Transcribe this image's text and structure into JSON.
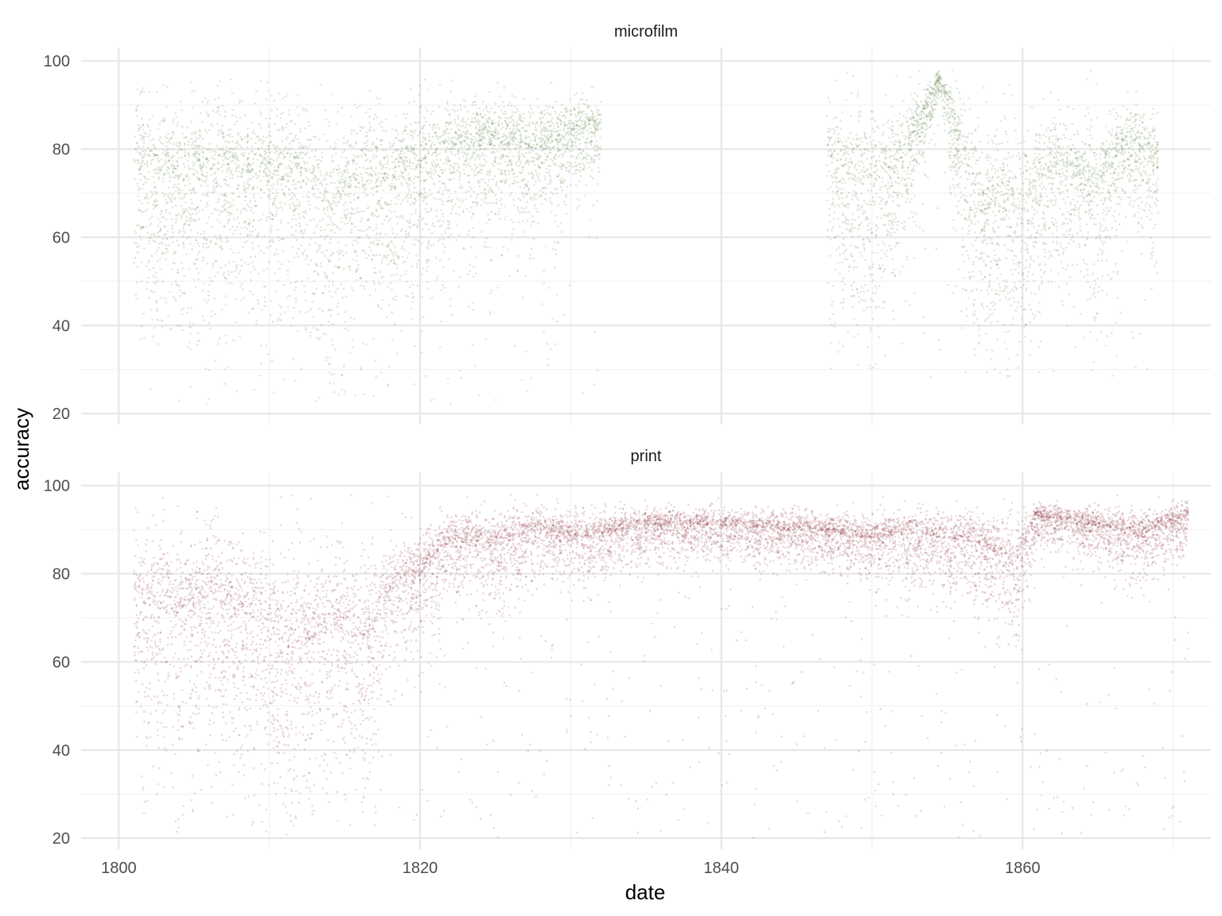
{
  "chart_data": {
    "type": "scatter",
    "xlabel": "date",
    "ylabel": "accuracy",
    "xlim": [
      1797.5,
      1872.5
    ],
    "ylim": [
      17.5,
      103
    ],
    "x_ticks": [
      1800,
      1820,
      1840,
      1860
    ],
    "x_tick_labels": [
      "1800",
      "1820",
      "1840",
      "1860"
    ],
    "y_ticks": [
      20,
      40,
      60,
      80,
      100
    ],
    "y_tick_labels": [
      "20",
      "40",
      "60",
      "80",
      "100"
    ],
    "grid": true,
    "legend": "none",
    "facets": [
      {
        "name": "microfilm",
        "color": "#3d6b21",
        "segments": [
          {
            "x_start": 1801,
            "x_end": 1832,
            "band_low": 55,
            "band_high": 88,
            "min": 22,
            "max": 96
          },
          {
            "x_start": 1847,
            "x_end": 1869,
            "band_low": 52,
            "band_high": 86,
            "min": 28,
            "max": 98
          }
        ],
        "profile": [
          {
            "x": 1801,
            "center": 76,
            "spread": 16
          },
          {
            "x": 1803,
            "center": 74,
            "spread": 16
          },
          {
            "x": 1805,
            "center": 72,
            "spread": 18
          },
          {
            "x": 1808,
            "center": 76,
            "spread": 14
          },
          {
            "x": 1810,
            "center": 72,
            "spread": 18
          },
          {
            "x": 1812,
            "center": 74,
            "spread": 16
          },
          {
            "x": 1814,
            "center": 66,
            "spread": 22
          },
          {
            "x": 1816,
            "center": 72,
            "spread": 16
          },
          {
            "x": 1818,
            "center": 70,
            "spread": 18
          },
          {
            "x": 1820,
            "center": 75,
            "spread": 16
          },
          {
            "x": 1822,
            "center": 80,
            "spread": 12
          },
          {
            "x": 1825,
            "center": 81,
            "spread": 10
          },
          {
            "x": 1828,
            "center": 80,
            "spread": 11
          },
          {
            "x": 1831,
            "center": 85,
            "spread": 7
          },
          {
            "x": 1847,
            "center": 76,
            "spread": 14
          },
          {
            "x": 1850,
            "center": 71,
            "spread": 16
          },
          {
            "x": 1852,
            "center": 78,
            "spread": 12
          },
          {
            "x": 1854.5,
            "center": 96,
            "spread": 2
          },
          {
            "x": 1857,
            "center": 65,
            "spread": 20
          },
          {
            "x": 1860,
            "center": 66,
            "spread": 18
          },
          {
            "x": 1862,
            "center": 76,
            "spread": 12
          },
          {
            "x": 1865,
            "center": 71,
            "spread": 13
          },
          {
            "x": 1867,
            "center": 83,
            "spread": 8
          },
          {
            "x": 1869,
            "center": 76,
            "spread": 12
          }
        ]
      },
      {
        "name": "print",
        "color": "#7a1428",
        "segments": [
          {
            "x_start": 1801,
            "x_end": 1871,
            "band_low": 50,
            "band_high": 96,
            "min": 20,
            "max": 98
          }
        ],
        "profile": [
          {
            "x": 1801,
            "center": 74,
            "spread": 16
          },
          {
            "x": 1804,
            "center": 70,
            "spread": 18
          },
          {
            "x": 1806,
            "center": 74,
            "spread": 16
          },
          {
            "x": 1809,
            "center": 70,
            "spread": 18
          },
          {
            "x": 1811.5,
            "center": 62,
            "spread": 20
          },
          {
            "x": 1814,
            "center": 68,
            "spread": 18
          },
          {
            "x": 1816.5,
            "center": 64,
            "spread": 20
          },
          {
            "x": 1818,
            "center": 76,
            "spread": 10
          },
          {
            "x": 1820,
            "center": 80,
            "spread": 8
          },
          {
            "x": 1822,
            "center": 87,
            "spread": 7
          },
          {
            "x": 1825,
            "center": 86,
            "spread": 8
          },
          {
            "x": 1828,
            "center": 90,
            "spread": 5
          },
          {
            "x": 1831,
            "center": 88,
            "spread": 6
          },
          {
            "x": 1835,
            "center": 91,
            "spread": 4
          },
          {
            "x": 1840,
            "center": 91,
            "spread": 4
          },
          {
            "x": 1843,
            "center": 90,
            "spread": 4
          },
          {
            "x": 1846,
            "center": 90,
            "spread": 4
          },
          {
            "x": 1850,
            "center": 88,
            "spread": 5
          },
          {
            "x": 1853,
            "center": 89,
            "spread": 6
          },
          {
            "x": 1857,
            "center": 87,
            "spread": 7
          },
          {
            "x": 1859.5,
            "center": 82,
            "spread": 10
          },
          {
            "x": 1861,
            "center": 93,
            "spread": 3
          },
          {
            "x": 1865,
            "center": 91,
            "spread": 4
          },
          {
            "x": 1868,
            "center": 89,
            "spread": 5
          },
          {
            "x": 1871,
            "center": 93,
            "spread": 4
          }
        ]
      }
    ]
  }
}
